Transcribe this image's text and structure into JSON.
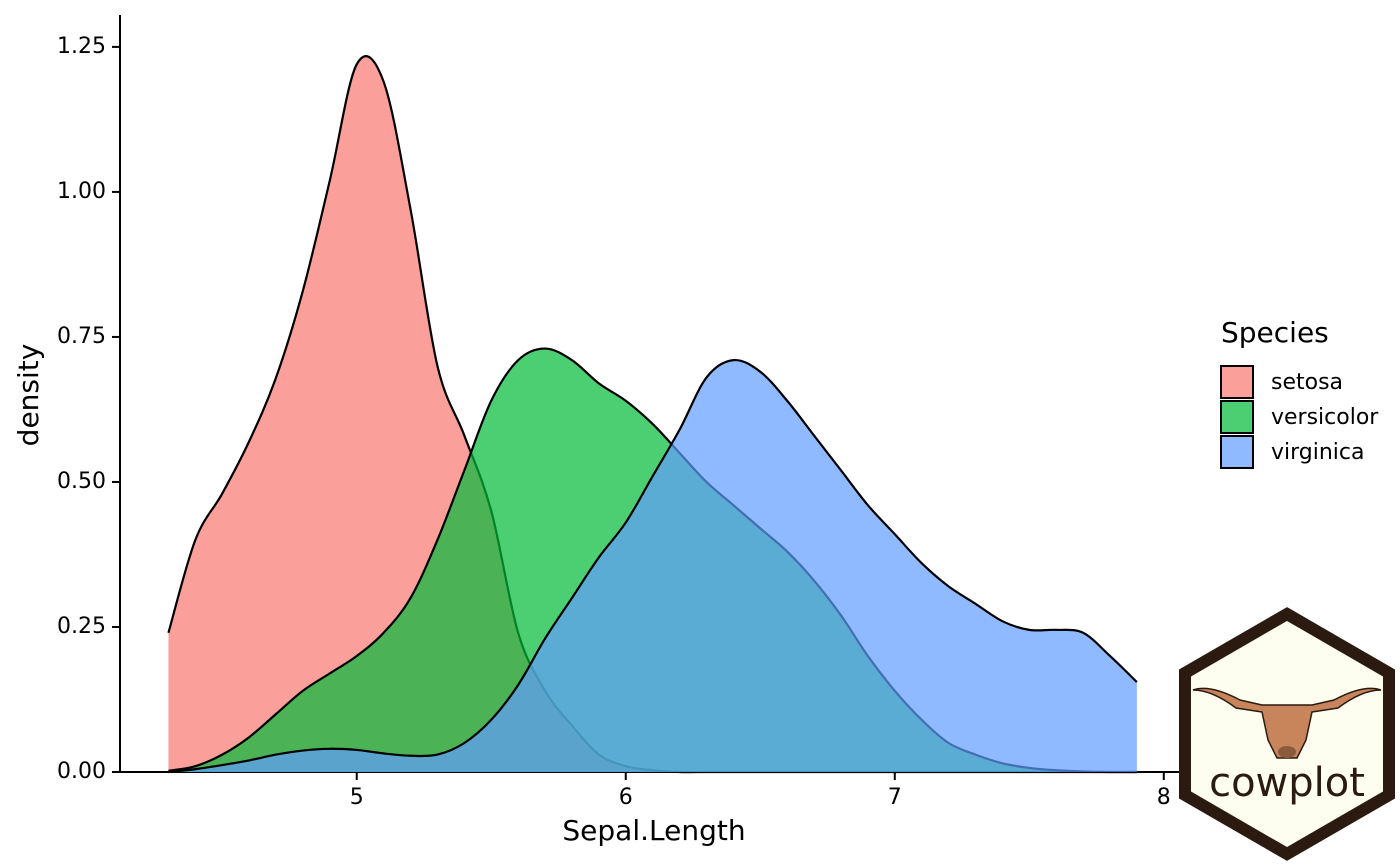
{
  "chart_data": {
    "type": "density",
    "x_label": "Sepal.Length",
    "y_label": "density",
    "legend_title": "Species",
    "annotations": [
      "cowplot"
    ],
    "x": [
      4.3,
      4.4,
      4.5,
      4.6,
      4.7,
      4.8,
      4.9,
      5.0,
      5.1,
      5.2,
      5.3,
      5.4,
      5.5,
      5.6,
      5.7,
      5.8,
      5.9,
      6.0,
      6.1,
      6.2,
      6.3,
      6.4,
      6.5,
      6.6,
      6.7,
      6.8,
      6.9,
      7.0,
      7.1,
      7.2,
      7.3,
      7.4,
      7.5,
      7.6,
      7.7,
      7.8,
      7.9
    ],
    "series": [
      {
        "name": "setosa",
        "color": "#F8766D",
        "values": [
          0.24,
          0.4,
          0.48,
          0.57,
          0.68,
          0.83,
          1.02,
          1.22,
          1.19,
          0.97,
          0.7,
          0.58,
          0.45,
          0.24,
          0.14,
          0.08,
          0.03,
          0.01,
          0.003,
          0,
          0,
          0,
          0,
          0,
          0,
          0,
          0,
          0,
          0,
          0,
          0,
          0,
          0,
          0,
          0,
          0,
          0
        ]
      },
      {
        "name": "versicolor",
        "color": "#00BA38",
        "values": [
          0.002,
          0.01,
          0.03,
          0.06,
          0.1,
          0.14,
          0.17,
          0.2,
          0.24,
          0.3,
          0.4,
          0.52,
          0.64,
          0.71,
          0.73,
          0.71,
          0.67,
          0.64,
          0.6,
          0.55,
          0.5,
          0.46,
          0.42,
          0.38,
          0.33,
          0.27,
          0.2,
          0.14,
          0.09,
          0.05,
          0.03,
          0.015,
          0.007,
          0.003,
          0.001,
          0,
          0
        ]
      },
      {
        "name": "virginica",
        "color": "#619CFF",
        "values": [
          0,
          0.005,
          0.012,
          0.02,
          0.03,
          0.037,
          0.04,
          0.038,
          0.032,
          0.028,
          0.03,
          0.05,
          0.09,
          0.15,
          0.23,
          0.3,
          0.37,
          0.43,
          0.51,
          0.59,
          0.68,
          0.71,
          0.69,
          0.64,
          0.58,
          0.52,
          0.46,
          0.41,
          0.36,
          0.32,
          0.29,
          0.26,
          0.245,
          0.245,
          0.24,
          0.2,
          0.155
        ]
      }
    ],
    "alpha": 0.7,
    "xlim": [
      4.12,
      8.09
    ],
    "ylim": [
      0,
      1.305
    ],
    "xticks": [
      5,
      6,
      7,
      8
    ],
    "yticks": [
      {
        "value": 0,
        "label": "0.00"
      },
      0.25,
      {
        "value": 0.5,
        "label": "0.50"
      },
      0.75,
      {
        "value": 1,
        "label": "1.00"
      },
      1.25
    ]
  }
}
